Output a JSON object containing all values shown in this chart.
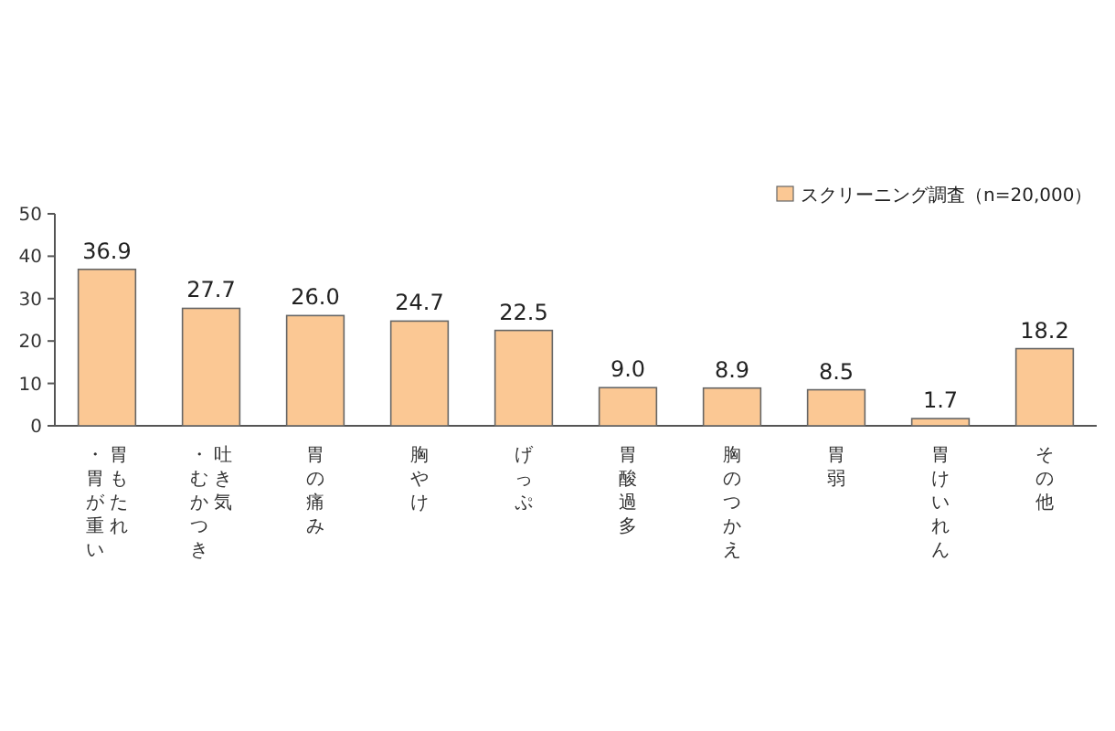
{
  "chart_data": {
    "type": "bar",
    "categories": [
      "胃もたれ・胃が重い",
      "吐き気・むかつき",
      "胃の痛み",
      "胸やけ",
      "げっぷ",
      "胃酸過多",
      "胸のつかえ",
      "胃弱",
      "胃けいれん",
      "その他"
    ],
    "series": [
      {
        "name": "スクリーニング調査（n=20,000）",
        "color": "#fbc894",
        "values": [
          36.9,
          27.7,
          26.0,
          24.7,
          22.5,
          9.0,
          8.9,
          8.5,
          1.7,
          18.2
        ],
        "value_labels": [
          "36.9",
          "27.7",
          "26.0",
          "24.7",
          "22.5",
          "9.0",
          "8.9",
          "8.5",
          "1.7",
          "18.2"
        ]
      }
    ],
    "ylim": [
      0,
      50
    ],
    "yticks": [
      0,
      10,
      20,
      30,
      40,
      50
    ],
    "legend": "top right"
  }
}
